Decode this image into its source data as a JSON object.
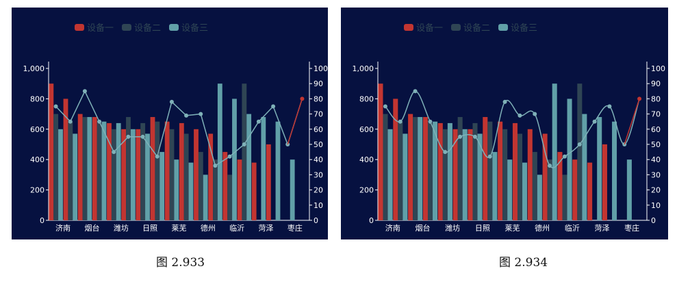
{
  "figures": [
    {
      "caption": "图 2.933",
      "smooth": false
    },
    {
      "caption": "图 2.934",
      "smooth": true
    }
  ],
  "colors": {
    "background": "#061140",
    "device1": "#c23531",
    "device2": "#2f4554",
    "device3": "#61a0a8",
    "line": "#7fb1b8",
    "line_end": "#c23531",
    "axis": "#ffffff",
    "legend_text": "#2f4554"
  },
  "chart_data": [
    {
      "type": "bar",
      "legend": [
        "设备一",
        "设备二",
        "设备三"
      ],
      "legend_position": "top-left",
      "categories": [
        "济南",
        "",
        "烟台",
        "",
        "潍坊",
        "",
        "日照",
        "",
        "莱芜",
        "",
        "德州",
        "",
        "临沂",
        "",
        "菏泽",
        "",
        "枣庄",
        ""
      ],
      "series": [
        {
          "name": "设备一",
          "values": [
            900,
            800,
            700,
            680,
            640,
            600,
            600,
            680,
            650,
            640,
            600,
            570,
            450,
            400,
            380,
            500,
            0,
            0
          ]
        },
        {
          "name": "设备二",
          "values": [
            700,
            650,
            680,
            640,
            600,
            680,
            640,
            650,
            600,
            570,
            450,
            400,
            300,
            900,
            0,
            0,
            0,
            0
          ]
        },
        {
          "name": "设备三",
          "values": [
            600,
            570,
            680,
            650,
            640,
            600,
            570,
            450,
            400,
            380,
            300,
            900,
            800,
            700,
            680,
            650,
            400,
            0
          ]
        }
      ],
      "line": {
        "axis": "right",
        "values": [
          75,
          65,
          85,
          65,
          45,
          55,
          55,
          42,
          78,
          69,
          70,
          36,
          42,
          50,
          65,
          75,
          50,
          80
        ]
      },
      "yaxis_left": {
        "min": 0,
        "max": 1000,
        "ticks": [
          "0",
          "200",
          "400",
          "600",
          "800",
          "1,000"
        ]
      },
      "yaxis_right": {
        "min": 0,
        "max": 100,
        "ticks": [
          "0",
          "10",
          "20",
          "30",
          "40",
          "50",
          "60",
          "70",
          "80",
          "90",
          "100"
        ]
      },
      "grid": false
    }
  ]
}
